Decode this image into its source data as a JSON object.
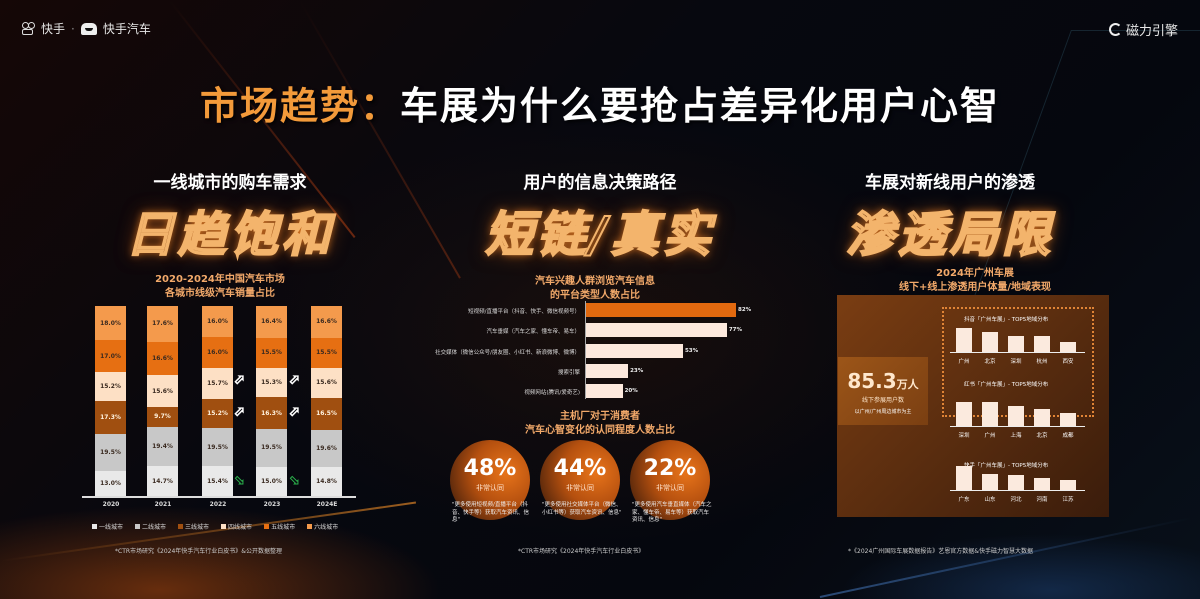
{
  "header": {
    "logo_left": "快手",
    "logo_separator": "·",
    "logo_left_2": "快手汽车",
    "logo_right": "磁力引擎"
  },
  "title": {
    "highlight": "市场趋势：",
    "rest": "车展为什么要抢占差异化用户心智"
  },
  "columns": [
    {
      "sub": "一线城市的购车需求",
      "big": "日趋饱和"
    },
    {
      "sub": "用户的信息决策路径",
      "big": "短链/真实"
    },
    {
      "sub": "车展对新线用户的渗透",
      "big": "渗透局限"
    }
  ],
  "left_note": "*CTR市场研究《2024年快手汽车行业白皮书》&公开数据整理",
  "middle_note": "*CTR市场研究《2024年快手汽车行业白皮书》",
  "right_note": "*《2024广州国际车展数据报告》艺恩官方数据&快手磁力智慧大数据",
  "kpi": {
    "value": "85.3",
    "unit": "万人",
    "label1": "线下参展用户数",
    "label2": "以广州/广州周边城市为主"
  },
  "chart_data": [
    {
      "type": "bar",
      "stacked": true,
      "title": "2020-2024年中国汽车市场\n各城市线级汽车销量占比",
      "categories": [
        "2020",
        "2021",
        "2022",
        "2023",
        "2024E"
      ],
      "series": [
        {
          "name": "一线城市",
          "color": "#e9e9e9",
          "values": [
            13.0,
            14.7,
            15.4,
            15.0,
            14.8
          ]
        },
        {
          "name": "二线城市",
          "color": "#c8c8c8",
          "values": [
            19.5,
            19.4,
            19.5,
            19.5,
            19.6
          ]
        },
        {
          "name": "三线城市",
          "color": "#a04f10",
          "values": [
            17.3,
            9.7,
            15.2,
            16.3,
            16.5
          ]
        },
        {
          "name": "四线城市",
          "color": "#fde0c5",
          "values": [
            15.2,
            15.6,
            15.7,
            15.3,
            15.6
          ]
        },
        {
          "name": "五线城市",
          "color": "#e66f12",
          "values": [
            17.0,
            16.6,
            16.0,
            15.5,
            15.5
          ]
        },
        {
          "name": "六线城市",
          "color": "#f49a4c",
          "values": [
            18.0,
            17.6,
            16.0,
            16.4,
            16.6
          ]
        }
      ],
      "annotations": [
        "一线城市占比下降 (绿色下箭头)",
        "三/四线城市占比上升 (白色上箭头)"
      ],
      "legend_position": "bottom"
    },
    {
      "type": "bar",
      "orientation": "horizontal",
      "title": "汽车兴趣人群浏览汽车信息\n的平台类型人数占比",
      "categories": [
        "短视频/直播平台（抖音、快手、微信视频号）",
        "汽车垂媒（汽车之家、懂车帝、易车）",
        "社交媒体（微信公众号/朋友圈、小红书、新浪微博、微博）",
        "搜索引擎",
        "视频网站(腾讯/爱奇艺)"
      ],
      "values": [
        82,
        77,
        53,
        23,
        20
      ],
      "unit": "%",
      "highlight_index": 0
    },
    {
      "type": "pie",
      "title": "主机厂对于消费者\n汽车心智变化的认同程度人数占比",
      "categories": [
        "更多使用短视频/直播平台获取汽车资讯",
        "更多使用社交媒体平台获取汽车资讯",
        "更多使用汽车垂直媒体获取汽车资讯"
      ],
      "values": [
        48,
        44,
        22
      ],
      "value_label": "非常认同",
      "captions": [
        "\"更多使用短视频/直播平台（抖音、快手等）获取汽车资讯、信息\"",
        "\"更多使用社交媒体平台（微信、小红书等）获取汽车资讯、信息\"",
        "\"更多使用汽车垂直媒体（汽车之家、懂车帝、易车等）获取汽车资讯、信息\""
      ]
    },
    {
      "type": "bar",
      "title": "2024年广州车展\n线下+线上渗透用户体量/地域表现",
      "subcharts": [
        {
          "title": "抖音「广州车展」- TOP5地域分布",
          "categories": [
            "广州",
            "北京",
            "深圳",
            "杭州",
            "西安"
          ],
          "values": [
            100,
            82,
            65,
            65,
            40
          ]
        },
        {
          "title": "红书「广州车展」- TOP5地域分布",
          "categories": [
            "深圳",
            "广州",
            "上海",
            "北京",
            "成都"
          ],
          "values": [
            100,
            100,
            85,
            72,
            55
          ]
        },
        {
          "title": "快手「广州车展」- TOP5地域分布",
          "categories": [
            "广东",
            "山东",
            "河北",
            "河南",
            "江苏"
          ],
          "values": [
            100,
            68,
            62,
            48,
            43
          ]
        }
      ]
    }
  ]
}
